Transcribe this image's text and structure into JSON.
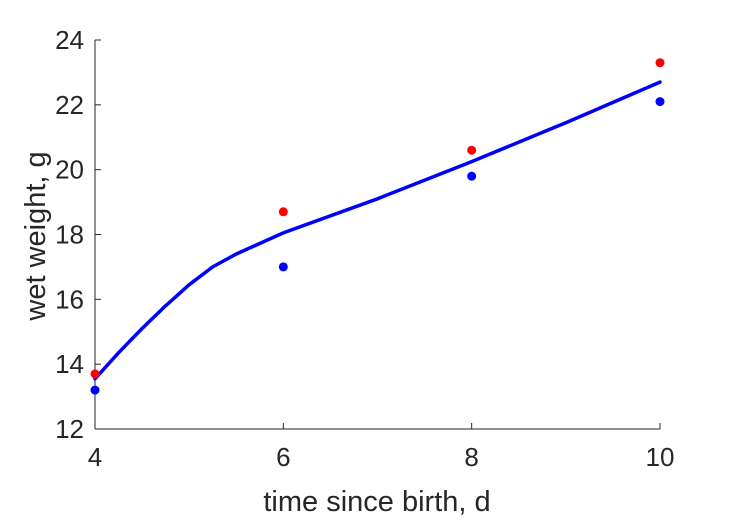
{
  "chart_data": {
    "type": "scatter",
    "xlabel": "time since birth, d",
    "ylabel": "wet weight, g",
    "xlim": [
      4,
      10
    ],
    "ylim": [
      12,
      24
    ],
    "xticks": [
      4,
      6,
      8,
      10
    ],
    "yticks": [
      12,
      14,
      16,
      18,
      20,
      22,
      24
    ],
    "grid": false,
    "series": [
      {
        "kind": "scatter",
        "color": "#ff0000",
        "points": [
          {
            "x": 4,
            "y": 13.7
          },
          {
            "x": 6,
            "y": 18.7
          },
          {
            "x": 8,
            "y": 20.6
          },
          {
            "x": 10,
            "y": 23.3
          }
        ]
      },
      {
        "kind": "scatter",
        "color": "#0000ff",
        "points": [
          {
            "x": 4,
            "y": 13.2
          },
          {
            "x": 6,
            "y": 17.0
          },
          {
            "x": 8,
            "y": 19.8
          },
          {
            "x": 10,
            "y": 22.1
          }
        ]
      },
      {
        "kind": "line",
        "color": "#0000ff",
        "points": [
          {
            "x": 4.0,
            "y": 13.55
          },
          {
            "x": 4.25,
            "y": 14.35
          },
          {
            "x": 4.5,
            "y": 15.1
          },
          {
            "x": 4.75,
            "y": 15.8
          },
          {
            "x": 5.0,
            "y": 16.45
          },
          {
            "x": 5.25,
            "y": 17.0
          },
          {
            "x": 5.5,
            "y": 17.4
          },
          {
            "x": 6.0,
            "y": 18.05
          },
          {
            "x": 7.0,
            "y": 19.1
          },
          {
            "x": 8.0,
            "y": 20.25
          },
          {
            "x": 9.0,
            "y": 21.45
          },
          {
            "x": 10.0,
            "y": 22.7
          }
        ]
      }
    ]
  }
}
